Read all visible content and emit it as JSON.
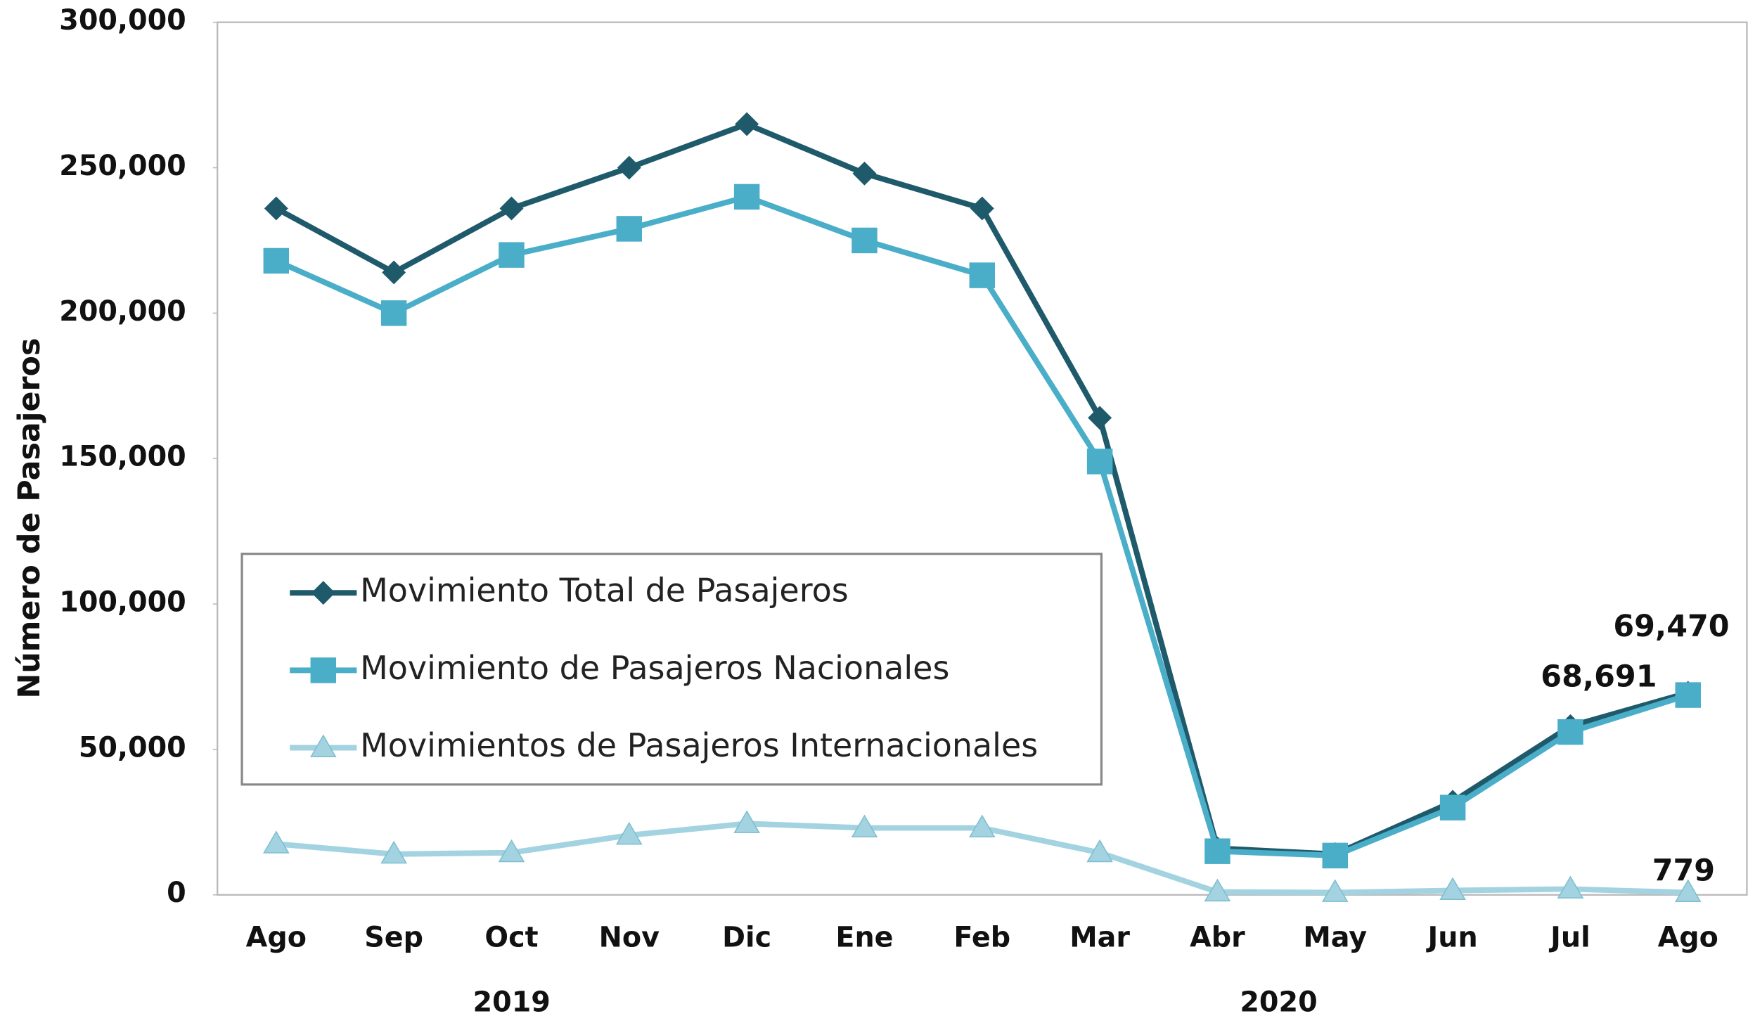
{
  "chart_data": {
    "type": "line",
    "y_label": "Número de Pasajeros",
    "categories": [
      "Ago",
      "Sep",
      "Oct",
      "Nov",
      "Dic",
      "Ene",
      "Feb",
      "Mar",
      "Abr",
      "May",
      "Jun",
      "Jul",
      "Ago"
    ],
    "year_labels": [
      "2019",
      "2020"
    ],
    "ylim": [
      0,
      300000
    ],
    "yticks": [
      0,
      {
        "value": 50000,
        "label": "50,000"
      },
      {
        "value": 100000,
        "label": "100,000"
      },
      {
        "value": 150000,
        "label": "150,000"
      },
      {
        "value": 200000,
        "label": "200,000"
      },
      {
        "value": 250000,
        "label": "250,000"
      },
      {
        "value": 300000,
        "label": "300,000"
      }
    ],
    "legend": "lower left",
    "series": [
      {
        "name": "Movimiento Total de Pasajeros",
        "color": "#1f5a6b",
        "marker": "diamond",
        "values": [
          236000,
          214000,
          236000,
          250000,
          265000,
          248000,
          236000,
          164000,
          16000,
          14000,
          32000,
          58000,
          69470
        ],
        "value_labels": [
          null,
          null,
          null,
          null,
          null,
          null,
          null,
          null,
          null,
          null,
          null,
          null,
          "69,470"
        ]
      },
      {
        "name": "Movimiento de Pasajeros Nacionales",
        "color": "#4aaec9",
        "marker": "square",
        "values": [
          218000,
          200000,
          220000,
          229000,
          240000,
          225000,
          213000,
          149000,
          15000,
          13500,
          30000,
          56000,
          68691
        ],
        "value_labels": [
          null,
          null,
          null,
          null,
          null,
          null,
          null,
          null,
          null,
          null,
          null,
          null,
          "68,691"
        ]
      },
      {
        "name": "Movimientos de Pasajeros Internacionales",
        "color": "#a3d3e0",
        "marker": "triangle",
        "values": [
          17500,
          14000,
          14500,
          20500,
          24500,
          23000,
          23000,
          14500,
          1000,
          800,
          1500,
          2000,
          779
        ],
        "value_labels": [
          null,
          null,
          null,
          null,
          null,
          null,
          null,
          null,
          null,
          null,
          null,
          null,
          "779"
        ]
      }
    ]
  }
}
